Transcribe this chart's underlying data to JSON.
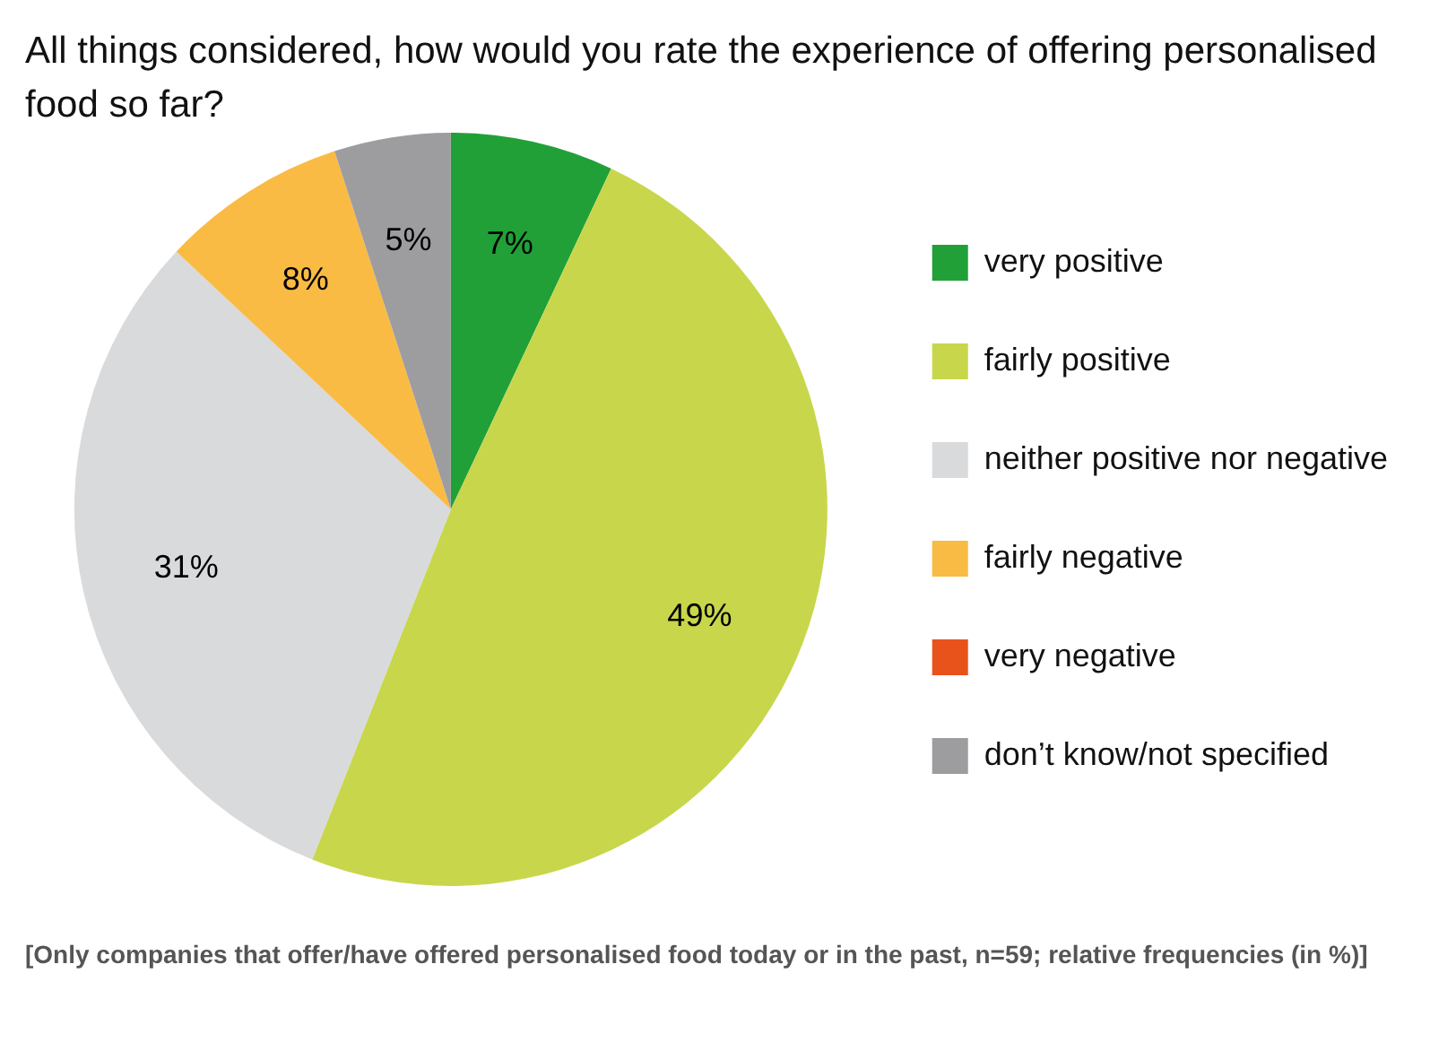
{
  "chart_data": {
    "type": "pie",
    "title": "All things considered, how would you rate the experience of offering personalised food so far?",
    "categories": [
      "very positive",
      "fairly positive",
      "neither positive nor negative",
      "fairly negative",
      "very negative",
      "don’t know/not specified"
    ],
    "values": [
      7,
      49,
      31,
      8,
      0,
      5
    ],
    "colors": [
      "#21a038",
      "#c8d64c",
      "#d9dadc",
      "#f9bb44",
      "#e8531c",
      "#9d9d9f"
    ],
    "value_labels": [
      "7%",
      "49%",
      "31%",
      "8%",
      null,
      "5%"
    ],
    "legend": "right",
    "annotations": [
      "[Only companies that offer/have offered personalised food today or in the past, n=59; relative frequencies (in %)]"
    ]
  }
}
